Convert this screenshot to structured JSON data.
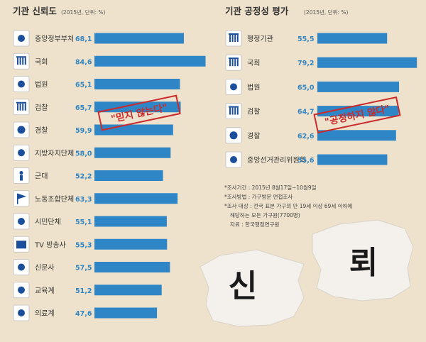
{
  "chart_data": [
    {
      "type": "bar",
      "orientation": "horizontal",
      "title": "기관 신뢰도",
      "unit_note": "(2015년, 단위: %)",
      "categories": [
        "중앙정부부처",
        "국회",
        "법원",
        "검찰",
        "경찰",
        "지방자치단체",
        "군대",
        "노동조합단체",
        "시민단체",
        "TV 방송사",
        "신문사",
        "교육계",
        "의료계"
      ],
      "values": [
        68.1,
        84.6,
        65.1,
        65.7,
        59.9,
        58.0,
        52.2,
        63.3,
        55.1,
        55.3,
        57.5,
        51.2,
        47.6
      ],
      "value_labels": [
        "68,1",
        "84,6",
        "65,1",
        "65,7",
        "59,9",
        "58,0",
        "52,2",
        "63,3",
        "55,1",
        "55,3",
        "57,5",
        "51,2",
        "47,6"
      ],
      "icons": [
        "government-emblem-icon",
        "national-assembly-icon",
        "court-icon",
        "prosecution-icon",
        "police-badge-icon",
        "local-government-icon",
        "soldier-icon",
        "labor-union-flag-icon",
        "citizens-group-icon",
        "tv-icon",
        "newspaper-icon",
        "education-icon",
        "medical-icon"
      ],
      "stamp": "\"믿지 않는다\"",
      "bar_color": "#2f86c6",
      "grid": false
    },
    {
      "type": "bar",
      "orientation": "horizontal",
      "title": "기관 공정성 평가",
      "unit_note": "(2015년, 단위: %)",
      "categories": [
        "행정기관",
        "국회",
        "법원",
        "검찰",
        "경찰",
        "중앙선거관리위원회"
      ],
      "values": [
        55.5,
        79.2,
        65.0,
        64.7,
        62.6,
        55.6
      ],
      "value_labels": [
        "55,5",
        "79,2",
        "65,0",
        "64,7",
        "62,6",
        "55,6"
      ],
      "icons": [
        "administrative-agency-icon",
        "national-assembly-icon",
        "court-icon",
        "prosecution-icon",
        "police-badge-icon",
        "election-commission-icon"
      ],
      "stamp": "\"공정하지 않다\"",
      "bar_color": "#2f86c6",
      "grid": false
    }
  ],
  "notes": [
    "*조사기간 : 2015년 8월17일~10월9일",
    "*조사방법 : 가구방문 면접조사",
    "*조사 대상 : 전국 표본 가구의 만 19세 이상 69세 이하에",
    "해당하는 모든 가구원(7700명)",
    "자료 : 한국행정연구원"
  ],
  "torn_paper": [
    "신",
    "뢰"
  ]
}
